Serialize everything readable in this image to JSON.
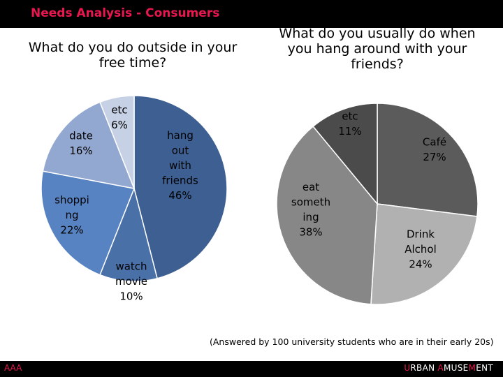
{
  "header": {
    "title": "Needs Analysis - Consumers"
  },
  "footer": {
    "left": "AAA",
    "brand_parts": [
      {
        "text": "U",
        "accent": true
      },
      {
        "text": "RBAN ",
        "accent": false
      },
      {
        "text": "A",
        "accent": true
      },
      {
        "text": "MUSE",
        "accent": false
      },
      {
        "text": "M",
        "accent": true
      },
      {
        "text": "ENT",
        "accent": false
      }
    ]
  },
  "note": "(Answered by 100 university students who are in their early 20s)",
  "colors": {
    "accent": "#e8174f",
    "bar": "#000000"
  },
  "chart_data": [
    {
      "type": "pie",
      "title": "What do you do outside in your free time?",
      "slices": [
        {
          "label": "hang out with friends",
          "value": 46,
          "display": [
            "hang",
            "out",
            "with",
            "friends",
            "46%"
          ],
          "color": "#3d5f92"
        },
        {
          "label": "watch movie",
          "value": 10,
          "display": [
            "watch",
            "movie",
            "10%"
          ],
          "color": "#4a70a8"
        },
        {
          "label": "shopping",
          "value": 22,
          "display": [
            "shoppi",
            "ng",
            "22%"
          ],
          "color": "#5883c2"
        },
        {
          "label": "date",
          "value": 16,
          "display": [
            "date",
            "16%"
          ],
          "color": "#93a8d1"
        },
        {
          "label": "etc",
          "value": 6,
          "display": [
            "etc",
            "6%"
          ],
          "color": "#c6d1e6"
        }
      ]
    },
    {
      "type": "pie",
      "title": "What do you usually do when you hang around with your friends?",
      "slices": [
        {
          "label": "Café",
          "value": 27,
          "display": [
            "Café",
            "27%"
          ],
          "color": "#5b5b5b"
        },
        {
          "label": "Drink Alchol",
          "value": 24,
          "display": [
            "Drink",
            "Alchol",
            "24%"
          ],
          "color": "#b1b1b1"
        },
        {
          "label": "eat something",
          "value": 38,
          "display": [
            "eat",
            "someth",
            "ing",
            "38%"
          ],
          "color": "#878787"
        },
        {
          "label": "etc",
          "value": 11,
          "display": [
            "etc",
            "11%"
          ],
          "color": "#4b4b4b"
        }
      ]
    }
  ]
}
